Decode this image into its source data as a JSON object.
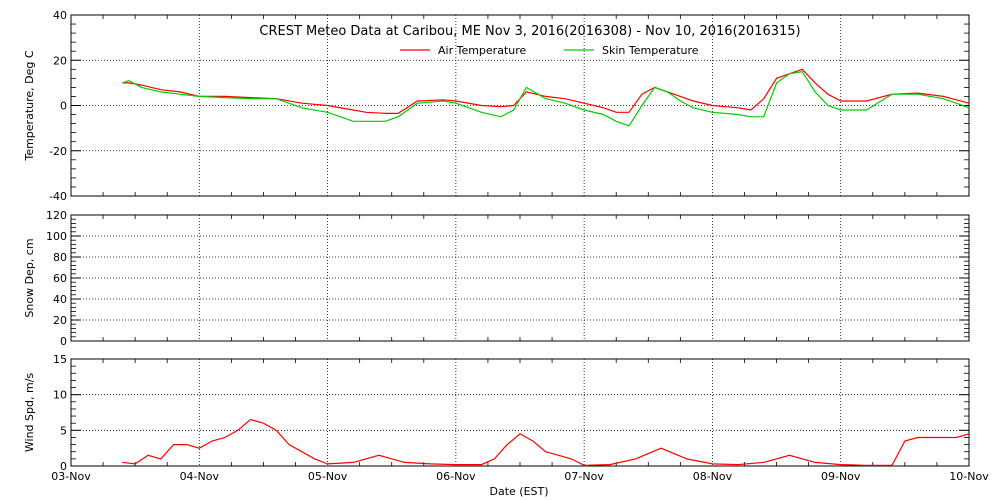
{
  "page": {
    "title": "CREST Meteo Data at Caribou, ME   Nov  3, 2016(2016308) - Nov 10, 2016(2016315)",
    "xlabel": "Date (EST)"
  },
  "x_ticks": [
    "03-Nov",
    "04-Nov",
    "05-Nov",
    "06-Nov",
    "07-Nov",
    "08-Nov",
    "09-Nov",
    "10-Nov"
  ],
  "chart_data": [
    {
      "type": "line",
      "title": "CREST Meteo Data at Caribou, ME   Nov  3, 2016(2016308) - Nov 10, 2016(2016315)",
      "ylabel": "Temperature, Deg C",
      "xlabel": "",
      "x_unit": "days since 03-Nov 00:00 EST",
      "xlim": [
        0,
        7
      ],
      "ylim": [
        -40,
        40
      ],
      "yticks": [
        -40,
        -20,
        0,
        20,
        40
      ],
      "grid": true,
      "legend_position": "top-center",
      "series": [
        {
          "name": "Air Temperature",
          "color": "#ff0000",
          "x": [
            0.4,
            0.45,
            0.55,
            0.7,
            0.85,
            1.0,
            1.2,
            1.4,
            1.6,
            1.8,
            2.0,
            2.2,
            2.3,
            2.45,
            2.55,
            2.7,
            2.9,
            3.0,
            3.2,
            3.35,
            3.45,
            3.55,
            3.7,
            3.85,
            4.0,
            4.15,
            4.25,
            4.35,
            4.45,
            4.55,
            4.65,
            4.75,
            4.85,
            5.0,
            5.2,
            5.3,
            5.4,
            5.5,
            5.6,
            5.7,
            5.8,
            5.9,
            6.0,
            6.2,
            6.4,
            6.6,
            6.8,
            6.9,
            7.0
          ],
          "y": [
            10,
            10,
            9,
            7,
            6,
            4,
            4,
            3.5,
            3,
            1,
            0,
            -2,
            -3,
            -3.5,
            -3.5,
            2,
            2.5,
            2,
            0,
            -0.5,
            0,
            6,
            4,
            3,
            1,
            -1,
            -3,
            -3,
            5,
            8,
            6,
            4,
            2,
            0,
            -1,
            -2,
            3,
            12,
            14,
            16,
            10,
            5,
            2,
            2,
            5,
            5.5,
            4,
            2.5,
            1
          ]
        },
        {
          "name": "Skin Temperature",
          "color": "#00cc00",
          "x": [
            0.4,
            0.45,
            0.55,
            0.7,
            0.85,
            1.0,
            1.2,
            1.4,
            1.6,
            1.8,
            2.0,
            2.2,
            2.3,
            2.45,
            2.55,
            2.7,
            2.9,
            3.0,
            3.2,
            3.35,
            3.45,
            3.55,
            3.7,
            3.85,
            4.0,
            4.15,
            4.25,
            4.35,
            4.45,
            4.55,
            4.65,
            4.75,
            4.85,
            5.0,
            5.2,
            5.3,
            5.4,
            5.5,
            5.6,
            5.7,
            5.8,
            5.9,
            6.0,
            6.2,
            6.4,
            6.6,
            6.8,
            6.9,
            7.0
          ],
          "y": [
            10,
            11,
            8,
            6,
            5,
            4,
            3.5,
            3,
            3,
            -1,
            -3,
            -7,
            -7,
            -7,
            -5,
            1,
            2,
            1,
            -3,
            -5,
            -2,
            8,
            3,
            1,
            -2,
            -4,
            -7,
            -9,
            0,
            8,
            6,
            2,
            -1,
            -3,
            -4,
            -5,
            -5,
            10,
            14,
            15,
            6,
            0,
            -2,
            -2,
            5,
            5,
            3,
            1,
            -1
          ]
        }
      ]
    },
    {
      "type": "line",
      "title": "",
      "ylabel": "Snow Dep, cm",
      "xlabel": "",
      "x_unit": "days since 03-Nov 00:00 EST",
      "xlim": [
        0,
        7
      ],
      "ylim": [
        0,
        120
      ],
      "yticks": [
        0,
        20,
        40,
        60,
        80,
        100,
        120
      ],
      "grid": true,
      "series": []
    },
    {
      "type": "line",
      "title": "",
      "ylabel": "Wind Spd, m/s",
      "xlabel": "Date (EST)",
      "x_unit": "days since 03-Nov 00:00 EST",
      "xlim": [
        0,
        7
      ],
      "ylim": [
        0,
        15
      ],
      "yticks": [
        0,
        5,
        10,
        15
      ],
      "grid": true,
      "series": [
        {
          "name": "",
          "color": "#ff0000",
          "x": [
            0.4,
            0.5,
            0.6,
            0.7,
            0.8,
            0.9,
            1.0,
            1.1,
            1.2,
            1.3,
            1.4,
            1.5,
            1.6,
            1.7,
            1.8,
            1.9,
            2.0,
            2.2,
            2.4,
            2.6,
            2.8,
            3.0,
            3.2,
            3.3,
            3.4,
            3.5,
            3.6,
            3.7,
            3.8,
            3.9,
            4.0,
            4.2,
            4.4,
            4.6,
            4.8,
            5.0,
            5.2,
            5.4,
            5.6,
            5.8,
            6.0,
            6.2,
            6.3,
            6.4,
            6.5,
            6.6,
            6.7,
            6.8,
            6.9,
            7.0
          ],
          "y": [
            0.5,
            0.3,
            1.5,
            1,
            3,
            3,
            2.5,
            3.5,
            4,
            5,
            6.5,
            6,
            5,
            3,
            2,
            1,
            0.3,
            0.5,
            1.5,
            0.5,
            0.3,
            0.2,
            0.2,
            1,
            3,
            4.5,
            3.5,
            2,
            1.5,
            1,
            0.1,
            0.2,
            1,
            2.5,
            1,
            0.3,
            0.2,
            0.5,
            1.5,
            0.5,
            0.2,
            0.1,
            0.1,
            0.1,
            3.5,
            4,
            4,
            4,
            4,
            4.5
          ]
        }
      ]
    }
  ]
}
